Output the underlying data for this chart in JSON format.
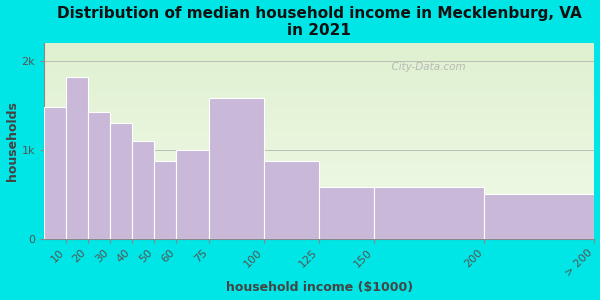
{
  "title": "Distribution of median household income in Mecklenburg, VA\nin 2021",
  "xlabel": "household income ($1000)",
  "ylabel": "households",
  "bin_edges": [
    0,
    10,
    20,
    30,
    40,
    50,
    60,
    75,
    100,
    125,
    150,
    200,
    250
  ],
  "bin_labels": [
    "10",
    "20",
    "30",
    "40",
    "50",
    "60",
    "75",
    "100",
    "125",
    "150",
    "200",
    "> 200"
  ],
  "values": [
    1480,
    1820,
    1430,
    1300,
    1100,
    870,
    1000,
    1580,
    870,
    580,
    580,
    500
  ],
  "bar_color": "#c9b8d8",
  "bar_edgecolor": "#ffffff",
  "background_color": "#00e5e5",
  "plot_bg_colors": [
    "#dff0d0",
    "#f0fae8"
  ],
  "yticks": [
    0,
    1000,
    2000
  ],
  "ytick_labels": [
    "0",
    "1k",
    "2k"
  ],
  "ylim": [
    0,
    2200
  ],
  "xlim_left": 0,
  "xlim_right": 250,
  "title_fontsize": 11,
  "axis_label_fontsize": 9,
  "tick_fontsize": 8,
  "watermark_text": "  City-Data.com"
}
